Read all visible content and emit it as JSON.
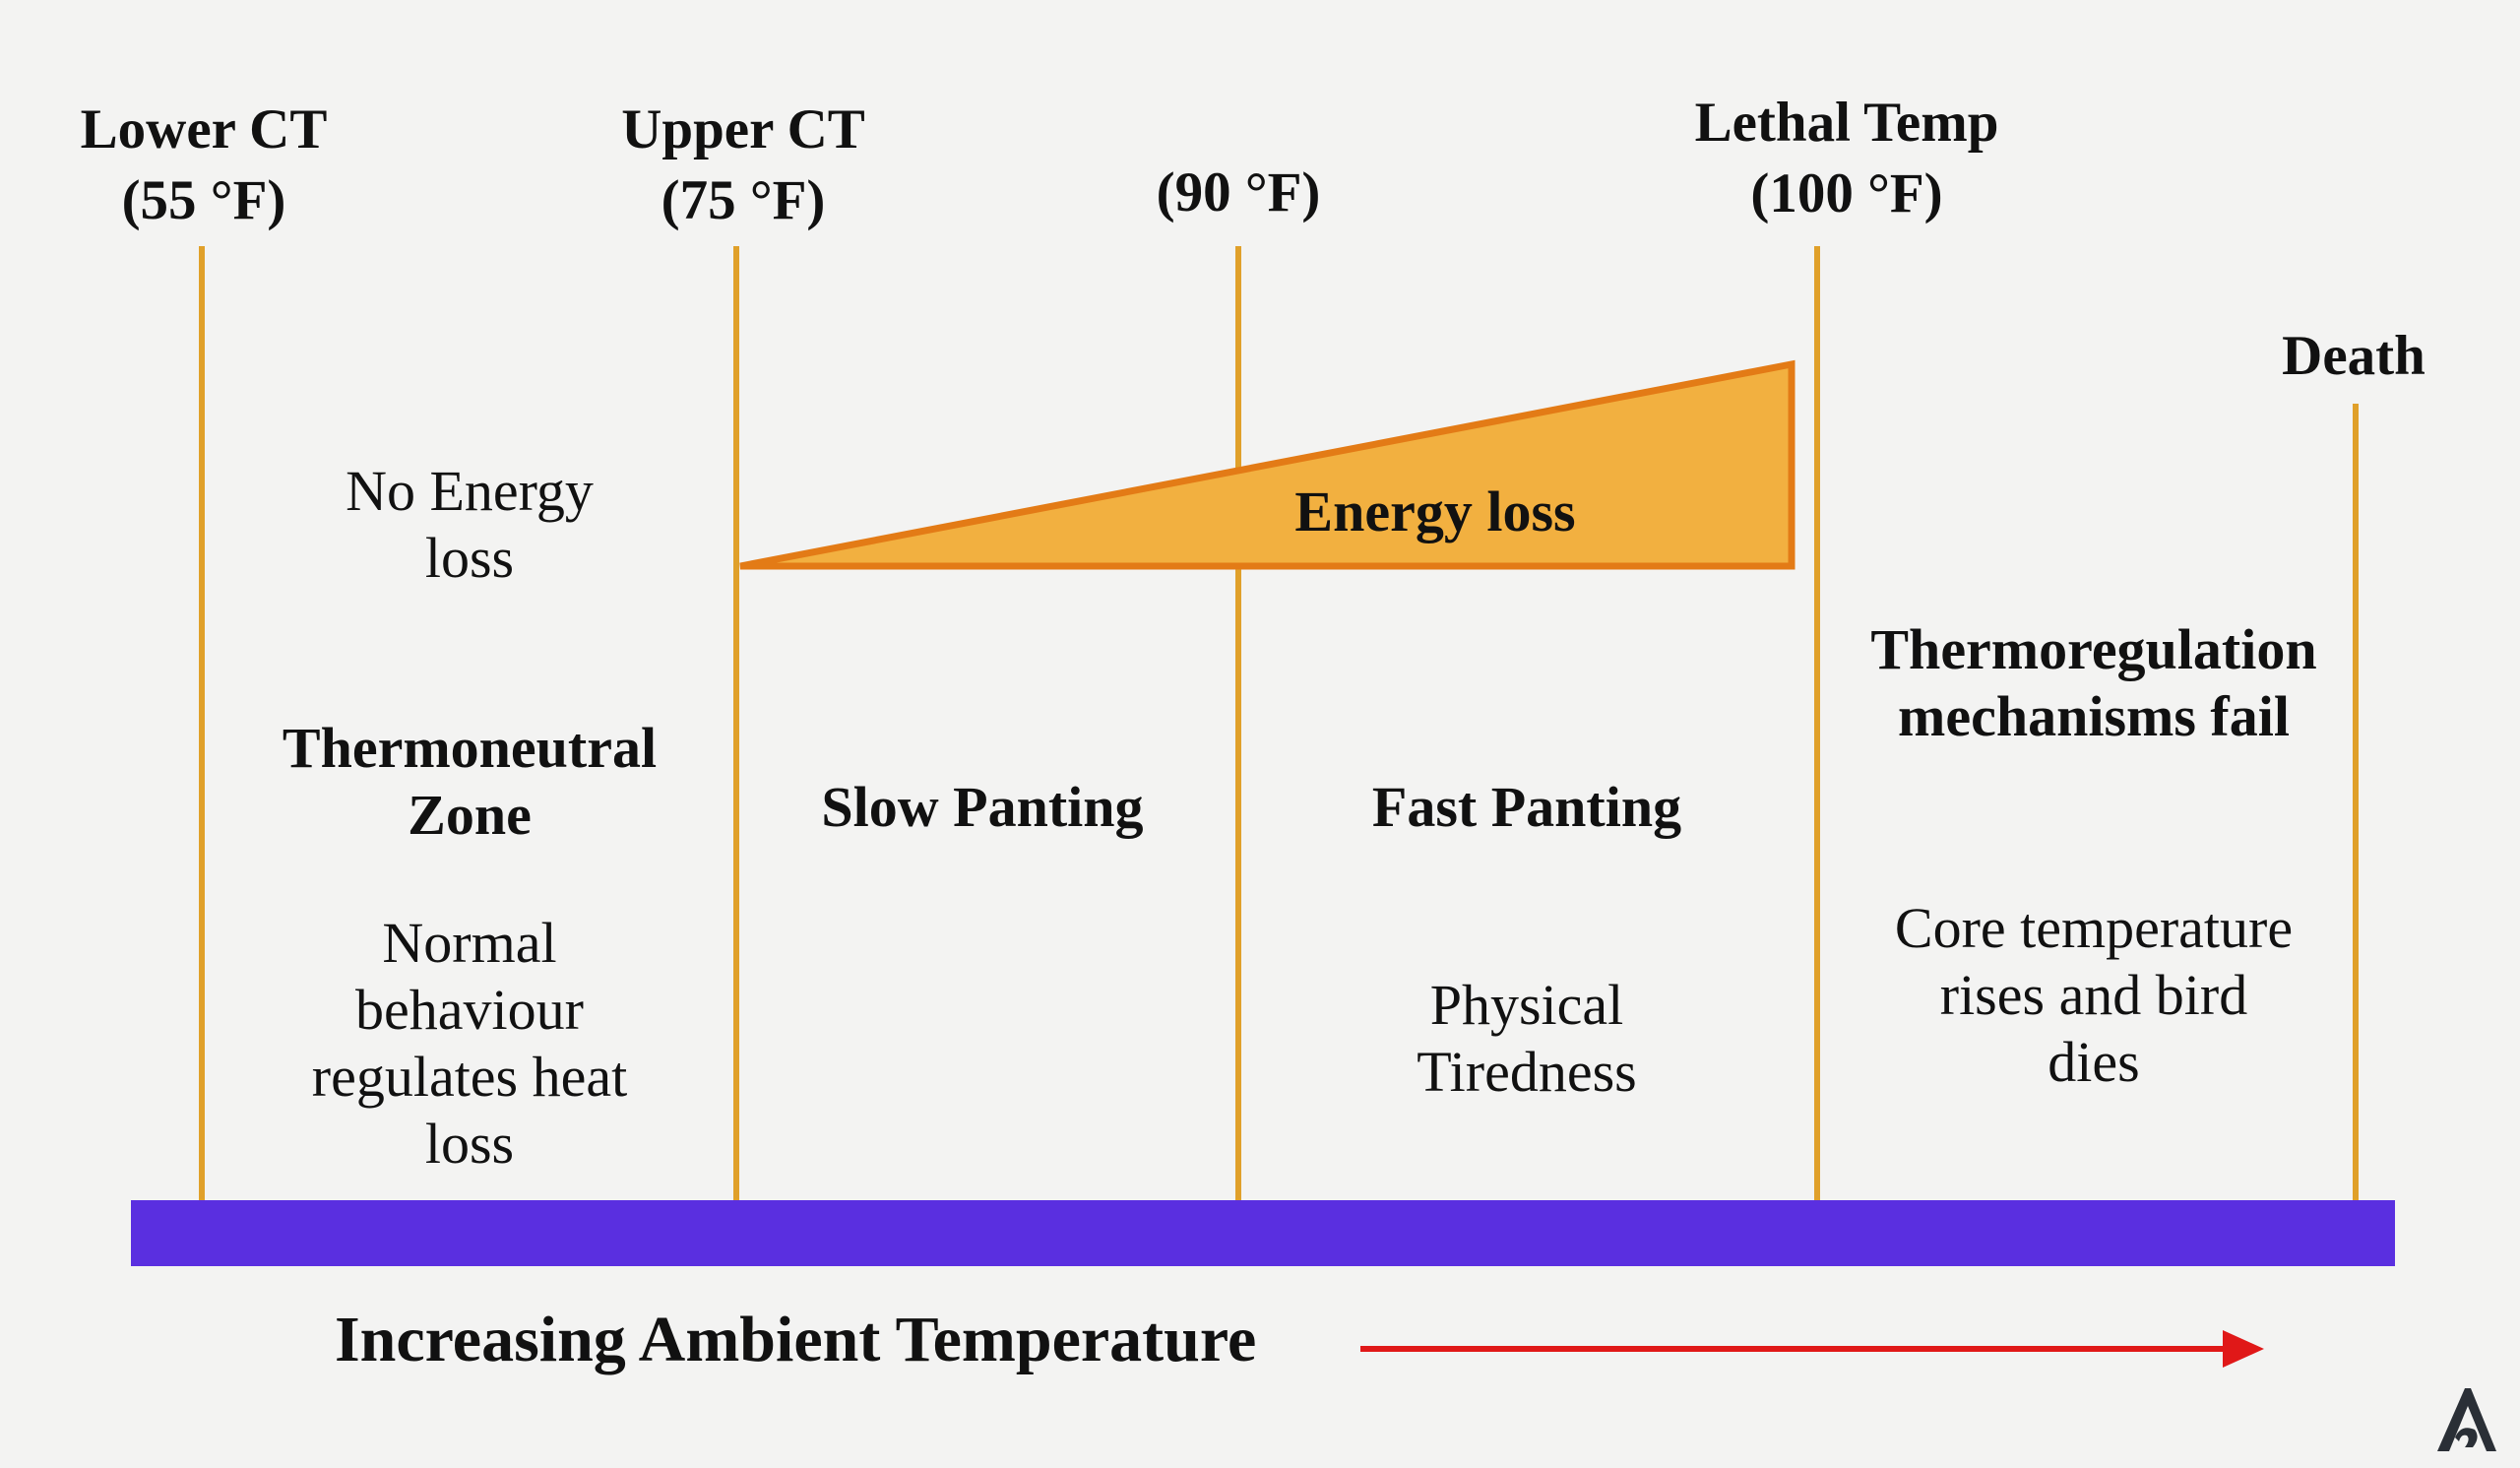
{
  "thresholds": [
    {
      "name": "Lower CT",
      "temp": "(55 °F)"
    },
    {
      "name": "Upper CT",
      "temp": "(75 °F)"
    },
    {
      "name": "",
      "temp": "(90 °F)"
    },
    {
      "name": "Lethal Temp",
      "temp": "(100 °F)"
    },
    {
      "name": "Death",
      "temp": ""
    }
  ],
  "energy_wedge": {
    "label": "Energy loss"
  },
  "zones": {
    "thermoneutral": {
      "energy": [
        "No Energy",
        "loss"
      ],
      "title": [
        "Thermoneutral",
        "Zone"
      ],
      "description": [
        "Normal",
        "behaviour",
        "regulates heat",
        "loss"
      ]
    },
    "slow_panting": {
      "title": "Slow Panting"
    },
    "fast_panting": {
      "title": "Fast Panting",
      "description": [
        "Physical",
        "Tiredness"
      ]
    },
    "failure": {
      "title": [
        "Thermoregulation",
        "mechanisms fail"
      ],
      "description": [
        "Core temperature",
        "rises and bird",
        "dies"
      ]
    }
  },
  "axis": {
    "title": "Increasing Ambient Temperature"
  },
  "colors": {
    "threshold_line": "#e0a02a",
    "wedge_fill": "#f2b040",
    "wedge_stroke": "#e37b16",
    "temperature_bar": "#5a2fe0",
    "arrow": "#e01818",
    "background": "#f3f3f2"
  },
  "logo": {
    "icon": "a-letter-logo-icon"
  }
}
